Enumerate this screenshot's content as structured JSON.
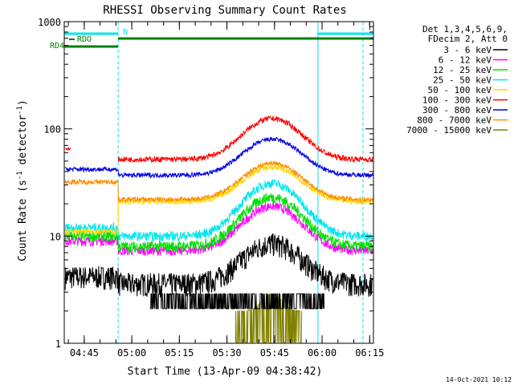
{
  "chart_data": {
    "type": "line",
    "title": "RHESSI Observing Summary Count Rates",
    "xlabel": "Start Time (13-Apr-09 04:38:42)",
    "ylabel_parts": [
      "Count Rate (s",
      "-1",
      " detector",
      "-1",
      ")"
    ],
    "y_scale": "log",
    "ylim": [
      1,
      1000
    ],
    "y_ticks": [
      {
        "v": 1,
        "label": "1"
      },
      {
        "v": 10,
        "label": "10"
      },
      {
        "v": 100,
        "label": "100"
      },
      {
        "v": 1000,
        "label": "1000"
      }
    ],
    "x_range_min": [
      0,
      97.5
    ],
    "x_ticks": [
      {
        "min": 6.3,
        "label": "04:45"
      },
      {
        "min": 21.3,
        "label": "05:00"
      },
      {
        "min": 36.3,
        "label": "05:15"
      },
      {
        "min": 51.3,
        "label": "05:30"
      },
      {
        "min": 66.3,
        "label": "05:45"
      },
      {
        "min": 81.3,
        "label": "06:00"
      },
      {
        "min": 96.3,
        "label": "06:15"
      }
    ],
    "legend_header": [
      "Det 1,3,4,5,6,9,",
      "FDecim 2, Att 0"
    ],
    "footer_date": "14-Oct-2021 10:12",
    "night_boundaries_min": [
      17.0,
      94.2
    ],
    "saa_or_day_line_min": 80.0,
    "bars": [
      {
        "label": "N",
        "color": "#00e5ee",
        "segments": [
          [
            0,
            17.0
          ],
          [
            79.8,
            97.5
          ]
        ]
      },
      {
        "label": "RDO",
        "color": "#008000",
        "segments": [
          [
            17.0,
            97.5
          ]
        ]
      },
      {
        "label": "RD4",
        "color": "#008000",
        "segments": [
          [
            0,
            17.0
          ]
        ]
      }
    ],
    "series": [
      {
        "name": "3 - 6 keV",
        "color": "#000000"
      },
      {
        "name": "6 - 12 keV",
        "color": "#ff00ff"
      },
      {
        "name": "12 - 25 keV",
        "color": "#00e000"
      },
      {
        "name": "25 - 50 keV",
        "color": "#00e5ee"
      },
      {
        "name": "50 - 100 keV",
        "color": "#ffd700"
      },
      {
        "name": "100 - 300 keV",
        "color": "#ff0000"
      },
      {
        "name": "300 - 800 keV",
        "color": "#0000e0"
      },
      {
        "name": "800 - 7000 keV",
        "color": "#ff8c00"
      },
      {
        "name": "7000 - 15000 keV",
        "color": "#808000"
      }
    ]
  }
}
